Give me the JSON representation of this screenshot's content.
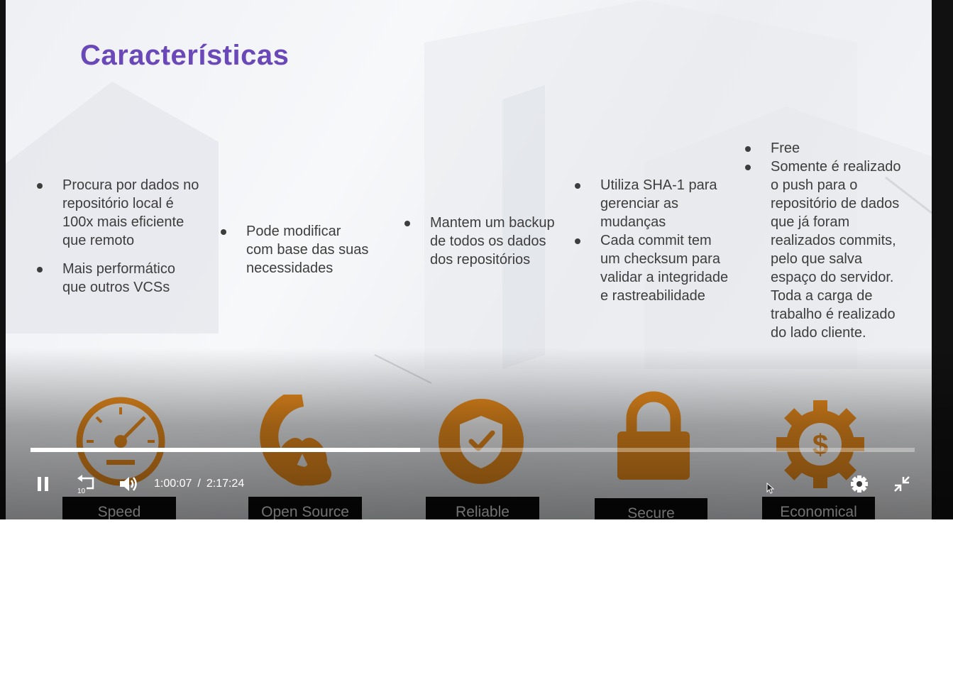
{
  "slide": {
    "title": "Características",
    "columns": [
      [
        "Procura por dados no repositório local é 100x mais eficiente que remoto",
        "Mais performático que outros VCSs"
      ],
      [
        "Pode modificar com base das suas necessidades"
      ],
      [
        "Mantem um backup de todos os dados dos repositórios"
      ],
      [
        "Utiliza SHA-1 para gerenciar as mudanças",
        "Cada commit tem um checksum para validar a integridade e rastreabilidade"
      ],
      [
        "Free",
        "Somente é realizado o push para o repositório de dados que já foram realizados commits, pelo que salva espaço do servidor. Toda a carga de trabalho é realizado do lado cliente."
      ]
    ],
    "features": [
      {
        "label": "Speed",
        "icon": "speedometer-icon"
      },
      {
        "label": "Open Source",
        "icon": "open-source-icon"
      },
      {
        "label": "Reliable",
        "icon": "shield-check-icon"
      },
      {
        "label": "Secure",
        "icon": "padlock-icon"
      },
      {
        "label": "Economical",
        "icon": "gear-dollar-icon"
      }
    ],
    "accent_color": "#f0901e",
    "title_color": "#6a48b8"
  },
  "player": {
    "current_time": "1:00:07",
    "separator": "/",
    "duration": "2:17:24",
    "progress_fraction": 0.4404,
    "replay_seconds": "10",
    "controls": [
      "pause-icon",
      "replay-10-icon",
      "volume-icon",
      "settings-icon",
      "exit-fullscreen-icon"
    ]
  }
}
